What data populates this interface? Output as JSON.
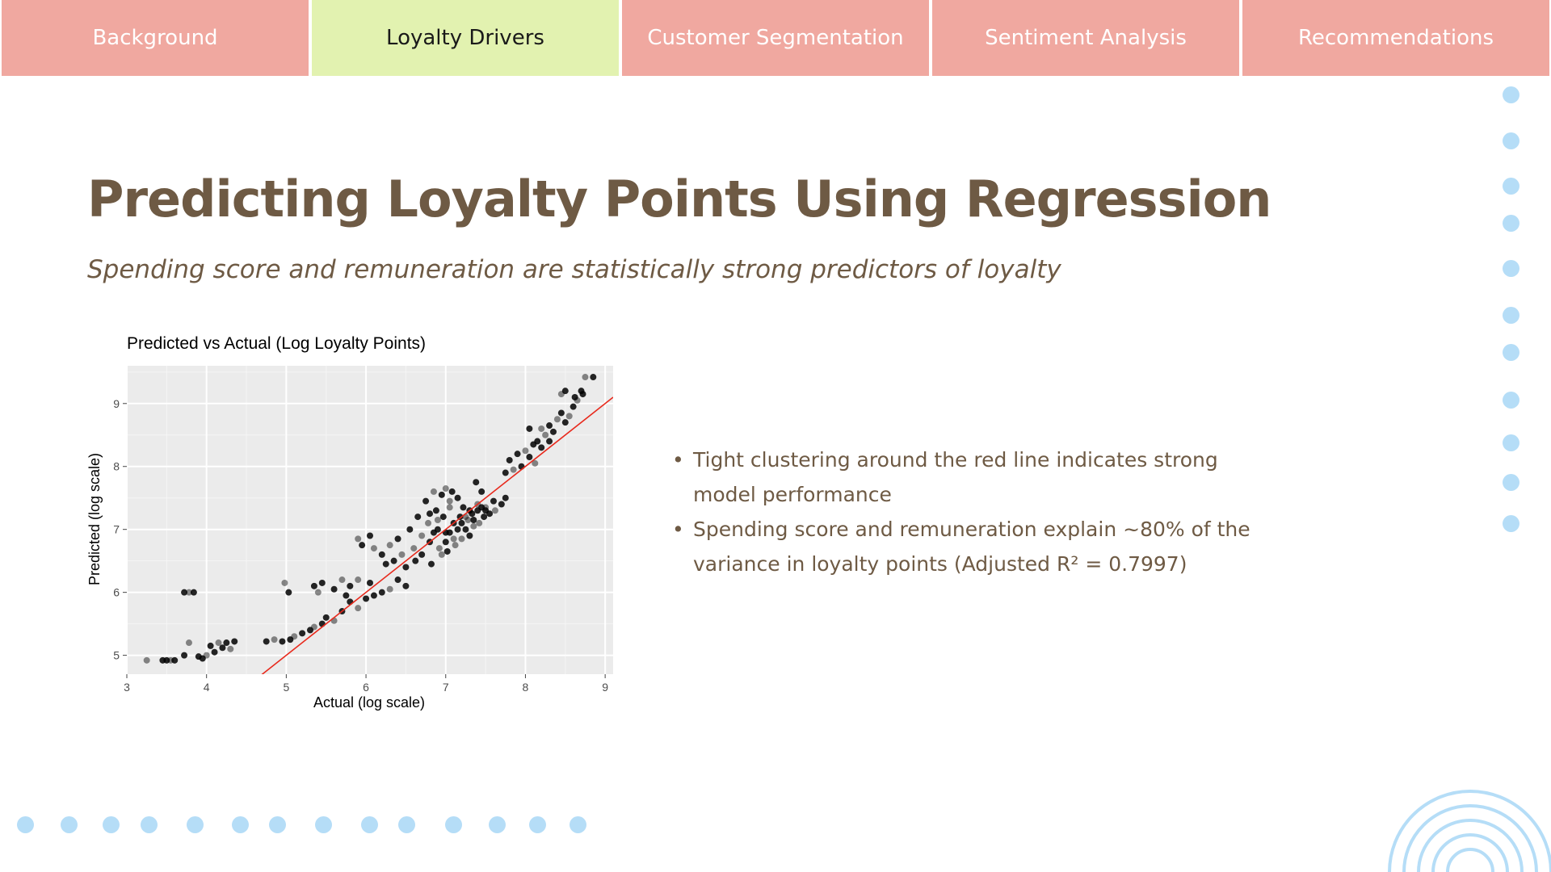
{
  "tabs": [
    {
      "label": "Background",
      "active": false
    },
    {
      "label": "Loyalty Drivers",
      "active": true
    },
    {
      "label": "Customer Segmentation",
      "active": false
    },
    {
      "label": "Sentiment Analysis",
      "active": false
    },
    {
      "label": "Recommendations",
      "active": false
    }
  ],
  "slide": {
    "title": "Predicting Loyalty Points Using Regression",
    "subtitle": "Spending score and remuneration are statistically strong predictors of loyalty"
  },
  "bullets": [
    "Tight clustering around the red line indicates strong model performance",
    "Spending score and remuneration explain ~80% of the variance in loyalty points (Adjusted R² = 0.7997)"
  ],
  "colors": {
    "tab_inactive": "#f0a8a0",
    "tab_active": "#e2f2b0",
    "heading": "#6e5a44",
    "decor_blue": "#b5ddf7",
    "fit_line": "#e8291c",
    "panel_bg": "#ebebeb"
  },
  "chart_data": {
    "type": "scatter",
    "title": "Predicted vs Actual (Log Loyalty Points)",
    "xlabel": "Actual (log scale)",
    "ylabel": "Predicted (log scale)",
    "xlim": [
      3,
      9.1
    ],
    "ylim": [
      4.7,
      9.6
    ],
    "xticks": [
      "3",
      "4",
      "5",
      "6",
      "7",
      "8",
      "9"
    ],
    "yticks": [
      "5",
      "6",
      "7",
      "8",
      "9"
    ],
    "grid": true,
    "reference_line": {
      "type": "identity",
      "color": "#e8291c",
      "slope": 1,
      "intercept": 0
    },
    "points": [
      [
        3.25,
        4.92
      ],
      [
        3.45,
        4.92
      ],
      [
        3.5,
        4.92
      ],
      [
        3.55,
        4.92
      ],
      [
        3.6,
        4.92
      ],
      [
        3.72,
        5.0
      ],
      [
        3.78,
        5.2
      ],
      [
        3.9,
        4.98
      ],
      [
        3.95,
        4.95
      ],
      [
        4.0,
        5.0
      ],
      [
        4.05,
        5.15
      ],
      [
        4.1,
        5.05
      ],
      [
        4.15,
        5.2
      ],
      [
        4.2,
        5.12
      ],
      [
        4.25,
        5.2
      ],
      [
        4.3,
        5.1
      ],
      [
        4.35,
        5.22
      ],
      [
        3.72,
        6.0
      ],
      [
        3.78,
        6.0
      ],
      [
        3.84,
        6.0
      ],
      [
        4.75,
        5.22
      ],
      [
        4.85,
        5.25
      ],
      [
        4.95,
        5.22
      ],
      [
        5.05,
        5.25
      ],
      [
        5.1,
        5.3
      ],
      [
        5.2,
        5.35
      ],
      [
        5.3,
        5.4
      ],
      [
        5.35,
        5.45
      ],
      [
        5.45,
        5.5
      ],
      [
        5.5,
        5.6
      ],
      [
        5.6,
        5.55
      ],
      [
        5.7,
        5.7
      ],
      [
        5.8,
        5.85
      ],
      [
        5.9,
        5.75
      ],
      [
        6.0,
        5.9
      ],
      [
        6.1,
        5.95
      ],
      [
        4.98,
        6.15
      ],
      [
        5.03,
        6.0
      ],
      [
        5.35,
        6.1
      ],
      [
        5.4,
        6.0
      ],
      [
        5.45,
        6.15
      ],
      [
        5.6,
        6.05
      ],
      [
        5.7,
        6.2
      ],
      [
        5.75,
        5.95
      ],
      [
        5.8,
        6.1
      ],
      [
        5.9,
        6.2
      ],
      [
        6.05,
        6.15
      ],
      [
        6.2,
        6.0
      ],
      [
        6.3,
        6.05
      ],
      [
        6.4,
        6.2
      ],
      [
        6.5,
        6.1
      ],
      [
        5.9,
        6.85
      ],
      [
        5.95,
        6.75
      ],
      [
        6.05,
        6.9
      ],
      [
        6.1,
        6.7
      ],
      [
        6.2,
        6.6
      ],
      [
        6.25,
        6.45
      ],
      [
        6.3,
        6.75
      ],
      [
        6.35,
        6.5
      ],
      [
        6.4,
        6.85
      ],
      [
        6.45,
        6.6
      ],
      [
        6.5,
        6.4
      ],
      [
        6.55,
        7.0
      ],
      [
        6.6,
        6.7
      ],
      [
        6.62,
        6.5
      ],
      [
        6.65,
        7.2
      ],
      [
        6.7,
        6.9
      ],
      [
        6.7,
        6.6
      ],
      [
        6.75,
        7.45
      ],
      [
        6.78,
        7.1
      ],
      [
        6.8,
        6.8
      ],
      [
        6.82,
        6.45
      ],
      [
        6.85,
        7.6
      ],
      [
        6.88,
        7.3
      ],
      [
        6.9,
        7.0
      ],
      [
        6.92,
        6.7
      ],
      [
        6.95,
        7.55
      ],
      [
        6.97,
        7.2
      ],
      [
        7.0,
        7.65
      ],
      [
        7.0,
        6.95
      ],
      [
        7.02,
        6.65
      ],
      [
        7.05,
        7.35
      ],
      [
        7.08,
        7.6
      ],
      [
        7.1,
        7.1
      ],
      [
        7.12,
        6.75
      ],
      [
        7.15,
        7.5
      ],
      [
        7.18,
        7.2
      ],
      [
        7.2,
        6.85
      ],
      [
        7.22,
        7.35
      ],
      [
        7.25,
        7.0
      ],
      [
        7.28,
        7.15
      ],
      [
        7.3,
        6.9
      ],
      [
        7.33,
        7.25
      ],
      [
        7.35,
        7.05
      ],
      [
        7.38,
        7.75
      ],
      [
        7.4,
        7.3
      ],
      [
        7.42,
        7.1
      ],
      [
        7.45,
        7.6
      ],
      [
        7.48,
        7.2
      ],
      [
        7.5,
        7.35
      ],
      [
        7.55,
        7.25
      ],
      [
        7.6,
        7.45
      ],
      [
        7.62,
        7.3
      ],
      [
        7.7,
        7.4
      ],
      [
        7.75,
        7.5
      ],
      [
        6.95,
        6.6
      ],
      [
        7.0,
        6.8
      ],
      [
        7.05,
        6.95
      ],
      [
        7.1,
        6.85
      ],
      [
        7.15,
        7.0
      ],
      [
        7.2,
        7.1
      ],
      [
        7.25,
        7.2
      ],
      [
        7.3,
        7.3
      ],
      [
        7.35,
        7.15
      ],
      [
        7.4,
        7.4
      ],
      [
        7.45,
        7.35
      ],
      [
        7.5,
        7.3
      ],
      [
        6.9,
        7.15
      ],
      [
        6.85,
        6.95
      ],
      [
        6.8,
        7.25
      ],
      [
        7.05,
        7.45
      ],
      [
        7.75,
        7.9
      ],
      [
        7.8,
        8.1
      ],
      [
        7.85,
        7.95
      ],
      [
        7.9,
        8.2
      ],
      [
        7.95,
        8.0
      ],
      [
        8.0,
        8.25
      ],
      [
        8.05,
        8.15
      ],
      [
        8.1,
        8.35
      ],
      [
        8.12,
        8.05
      ],
      [
        8.15,
        8.4
      ],
      [
        8.2,
        8.3
      ],
      [
        8.25,
        8.5
      ],
      [
        8.3,
        8.4
      ],
      [
        8.35,
        8.55
      ],
      [
        8.4,
        8.75
      ],
      [
        8.45,
        8.85
      ],
      [
        8.5,
        8.7
      ],
      [
        8.55,
        8.8
      ],
      [
        8.6,
        8.95
      ],
      [
        8.62,
        9.1
      ],
      [
        8.65,
        9.05
      ],
      [
        8.7,
        9.2
      ],
      [
        8.72,
        9.15
      ],
      [
        8.75,
        9.42
      ],
      [
        8.85,
        9.42
      ],
      [
        8.05,
        8.6
      ],
      [
        8.2,
        8.6
      ],
      [
        8.3,
        8.65
      ],
      [
        8.5,
        9.2
      ],
      [
        8.45,
        9.15
      ]
    ]
  }
}
